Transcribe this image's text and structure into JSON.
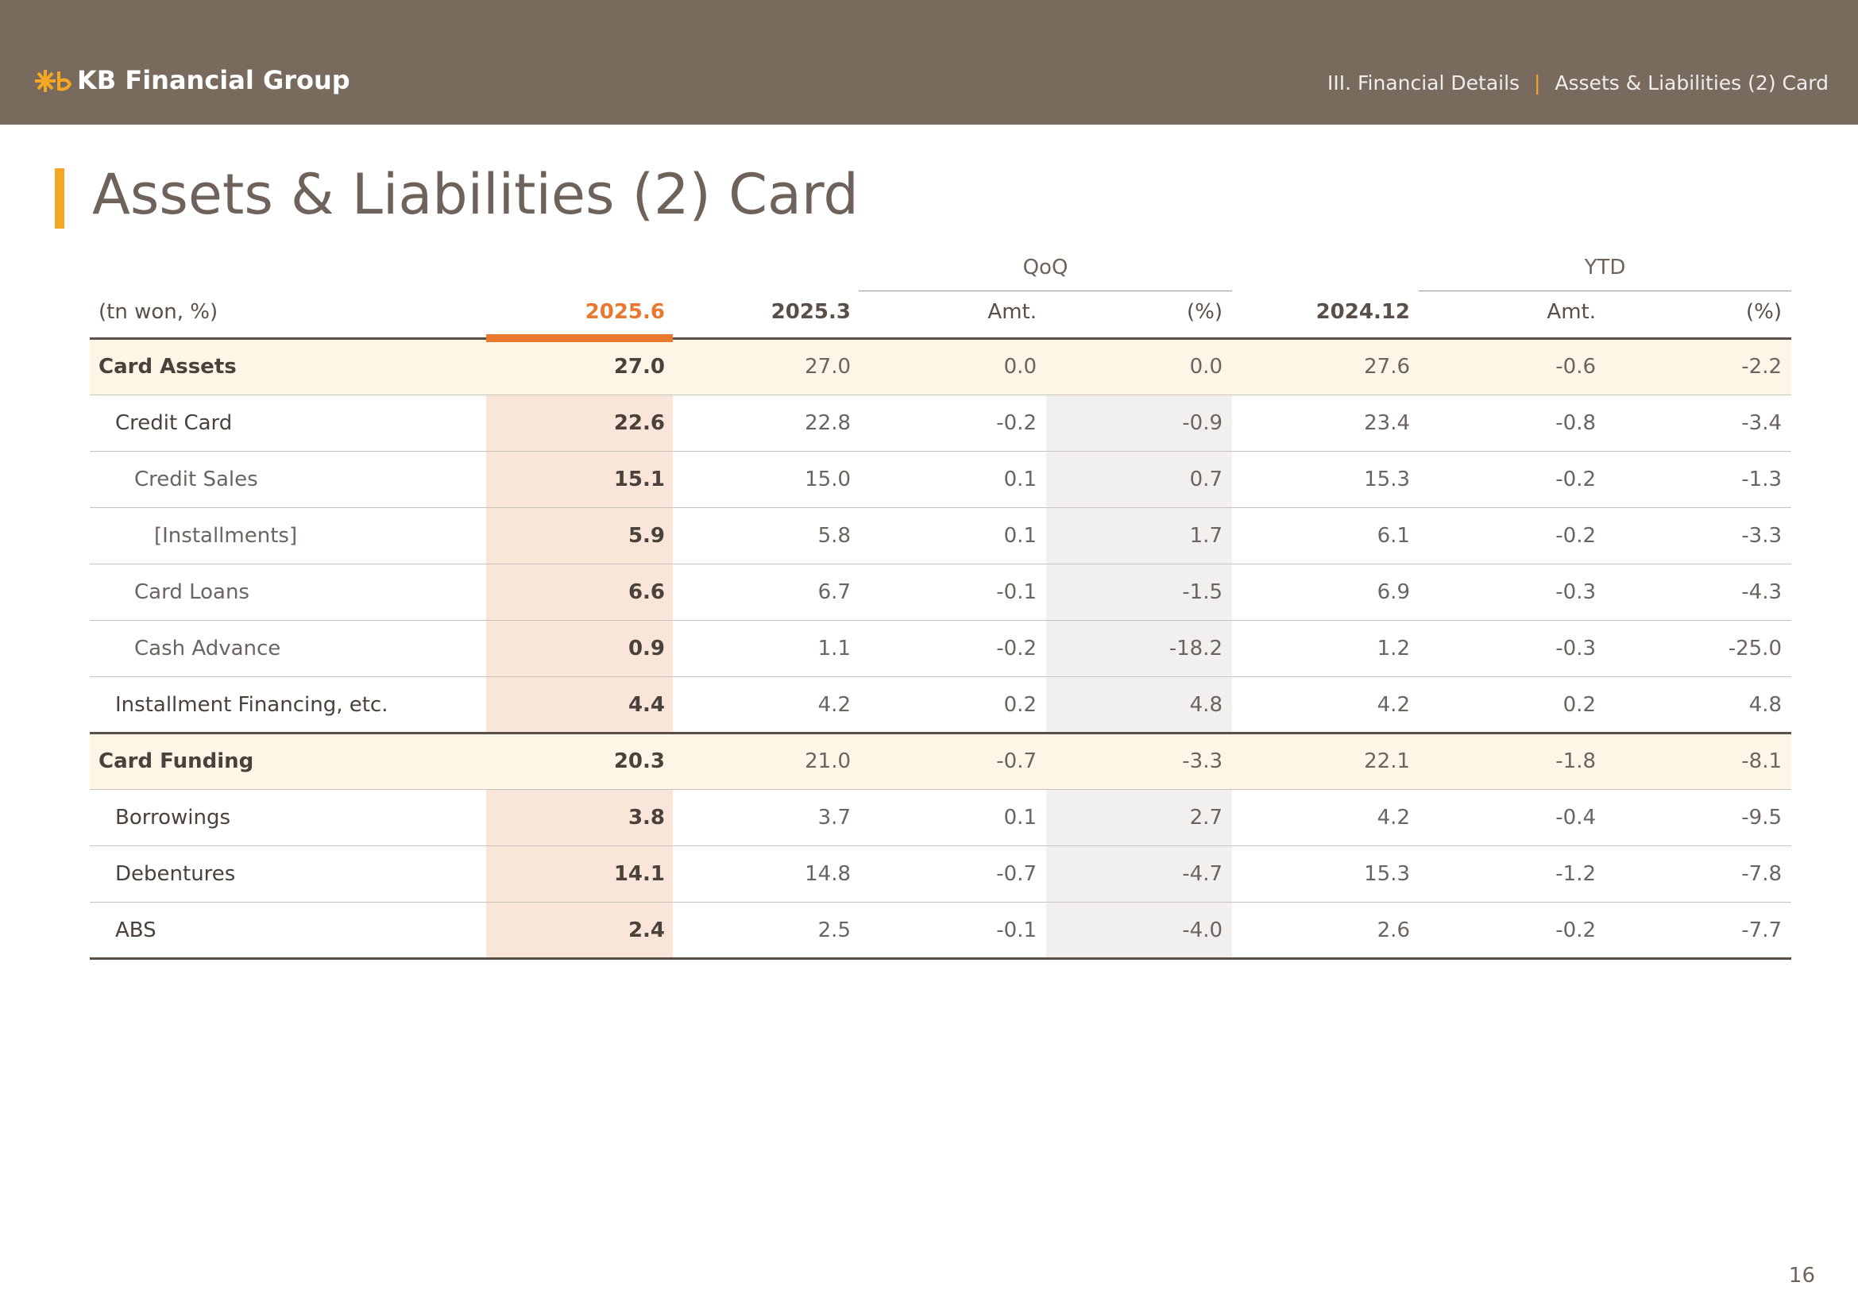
{
  "header": {
    "logo": "KB Financial Group",
    "section": "III. Financial Details",
    "separator": "|",
    "page_title": "Assets & Liabilities (2) Card"
  },
  "title": "Assets & Liabilities (2) Card",
  "table": {
    "unit": "(tn won, %)",
    "groups": [
      "QoQ",
      "YTD"
    ],
    "columns": [
      "2025.6",
      "2025.3",
      "Amt.",
      "(%)",
      "2024.12",
      "Amt.",
      "(%)"
    ],
    "rows": [
      {
        "label": "Card Assets",
        "values": [
          "27.0",
          "27.0",
          "0.0",
          "0.0",
          "27.6",
          "-0.6",
          "-2.2"
        ]
      },
      {
        "label": "Credit Card",
        "values": [
          "22.6",
          "22.8",
          "-0.2",
          "-0.9",
          "23.4",
          "-0.8",
          "-3.4"
        ]
      },
      {
        "label": "Credit Sales",
        "values": [
          "15.1",
          "15.0",
          "0.1",
          "0.7",
          "15.3",
          "-0.2",
          "-1.3"
        ]
      },
      {
        "label": "[Installments]",
        "values": [
          "5.9",
          "5.8",
          "0.1",
          "1.7",
          "6.1",
          "-0.2",
          "-3.3"
        ]
      },
      {
        "label": "Card Loans",
        "values": [
          "6.6",
          "6.7",
          "-0.1",
          "-1.5",
          "6.9",
          "-0.3",
          "-4.3"
        ]
      },
      {
        "label": "Cash Advance",
        "values": [
          "0.9",
          "1.1",
          "-0.2",
          "-18.2",
          "1.2",
          "-0.3",
          "-25.0"
        ]
      },
      {
        "label": "Installment Financing, etc.",
        "values": [
          "4.4",
          "4.2",
          "0.2",
          "4.8",
          "4.2",
          "0.2",
          "4.8"
        ]
      },
      {
        "label": "Card Funding",
        "values": [
          "20.3",
          "21.0",
          "-0.7",
          "-3.3",
          "22.1",
          "-1.8",
          "-8.1"
        ]
      },
      {
        "label": "Borrowings",
        "values": [
          "3.8",
          "3.7",
          "0.1",
          "2.7",
          "4.2",
          "-0.4",
          "-9.5"
        ]
      },
      {
        "label": "Debentures",
        "values": [
          "14.1",
          "14.8",
          "-0.7",
          "-4.7",
          "15.3",
          "-1.2",
          "-7.8"
        ]
      },
      {
        "label": "ABS",
        "values": [
          "2.4",
          "2.5",
          "-0.1",
          "-4.0",
          "2.6",
          "-0.2",
          "-7.7"
        ]
      }
    ]
  },
  "page_number": "16"
}
